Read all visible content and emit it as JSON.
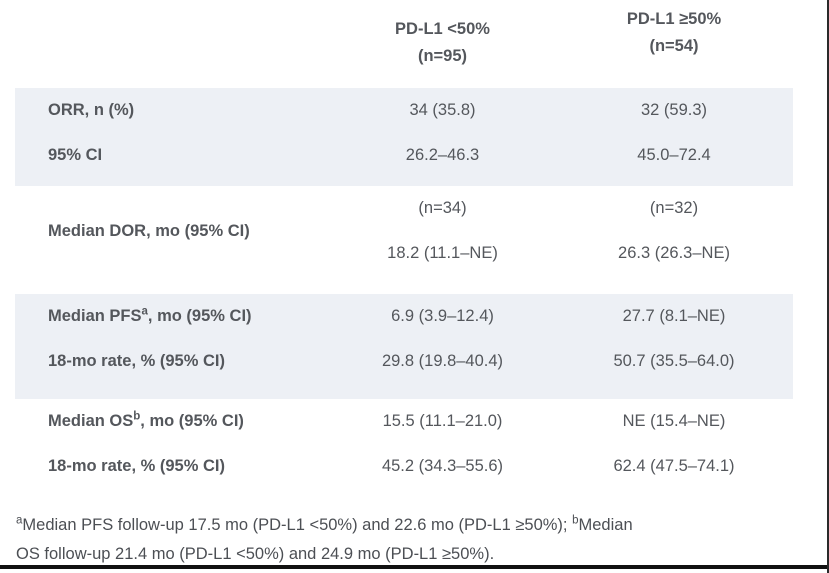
{
  "header": {
    "columns": [
      {
        "line1": "PD-L1 <50%",
        "line2": "(n=95)"
      },
      {
        "line1": "PD-L1 ≥50%",
        "line2": "(n=54)"
      }
    ]
  },
  "sections": [
    {
      "rows": [
        {
          "label_pre": "ORR, n (%)",
          "label_sup": "",
          "label_post": "",
          "col1": "34 (35.8)",
          "col2": "32 (59.3)"
        },
        {
          "label_pre": "95% CI",
          "label_sup": "",
          "label_post": "",
          "col1": "26.2–46.3",
          "col2": "45.0–72.4"
        }
      ]
    },
    {
      "label_pre": "Median DOR, mo (95% CI)",
      "col1_line1": "(n=34)",
      "col1_line2": "18.2 (11.1–NE)",
      "col2_line1": "(n=32)",
      "col2_line2": "26.3 (26.3–NE)"
    },
    {
      "rows": [
        {
          "label_pre": "Median PFS",
          "label_sup": "a",
          "label_post": ", mo (95% CI)",
          "col1": "6.9 (3.9–12.4)",
          "col2": "27.7 (8.1–NE)"
        },
        {
          "label_pre": "18-mo rate, % (95% CI)",
          "label_sup": "",
          "label_post": "",
          "col1": "29.8 (19.8–40.4)",
          "col2": "50.7 (35.5–64.0)"
        }
      ]
    },
    {
      "rows": [
        {
          "label_pre": "Median OS",
          "label_sup": "b",
          "label_post": ", mo (95% CI)",
          "col1": "15.5 (11.1–21.0)",
          "col2": "NE (15.4–NE)"
        },
        {
          "label_pre": "18-mo rate, % (95% CI)",
          "label_sup": "",
          "label_post": "",
          "col1": "45.2 (34.3–55.6)",
          "col2": "62.4 (47.5–74.1)"
        }
      ]
    }
  ],
  "footnote": {
    "line1_sup": "a",
    "line1_text": "Median PFS follow-up 17.5 mo (PD-L1 <50%) and 22.6 mo (PD-L1 ≥50%); ",
    "line1_sup2": "b",
    "line1_text2": "Median",
    "line2_text": "OS follow-up 21.4 mo (PD-L1 <50%) and 24.9 mo (PD-L1 ≥50%)."
  },
  "colors": {
    "row_shade": "#edf0f5",
    "text_color": "#54575c",
    "frame_line": "#111111"
  }
}
